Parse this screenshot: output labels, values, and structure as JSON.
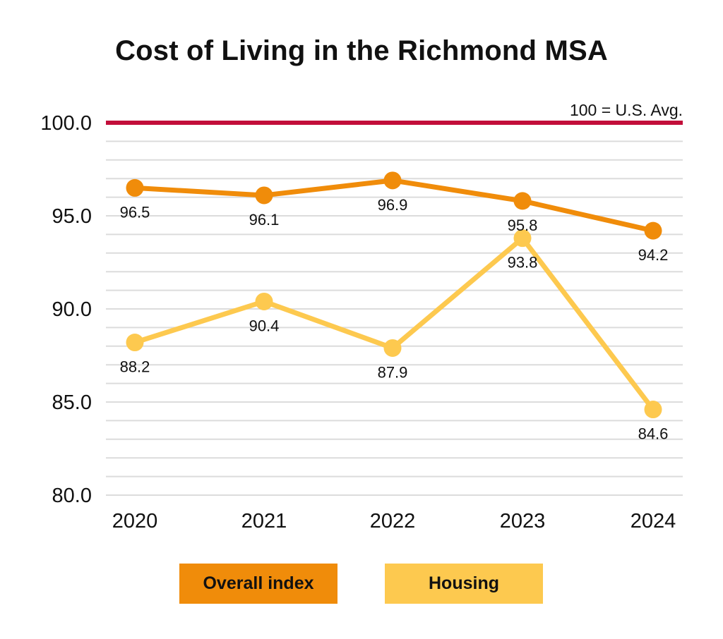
{
  "chart_data": {
    "type": "line",
    "title": "Cost of Living in the Richmond MSA",
    "xlabel": "",
    "ylabel": "",
    "x": [
      "2020",
      "2021",
      "2022",
      "2023",
      "2024"
    ],
    "ylim": [
      80,
      100
    ],
    "y_ticks": [
      "100.0",
      "95.0",
      "90.0",
      "85.0",
      "80.0"
    ],
    "grid": true,
    "grid_step": 1,
    "reference_line": {
      "value": 100,
      "label": "100 = U.S. Avg.",
      "color": "#c20e3a"
    },
    "series": [
      {
        "name": "Overall index",
        "color": "#f08c0a",
        "values": [
          96.5,
          96.1,
          96.9,
          95.8,
          94.2
        ],
        "labels": [
          "96.5",
          "96.1",
          "96.9",
          "95.8",
          "94.2"
        ]
      },
      {
        "name": "Housing",
        "color": "#fdc94f",
        "values": [
          88.2,
          90.4,
          87.9,
          93.8,
          84.6
        ],
        "labels": [
          "88.2",
          "90.4",
          "87.9",
          "93.8",
          "84.6"
        ]
      }
    ],
    "legend_position": "bottom"
  }
}
